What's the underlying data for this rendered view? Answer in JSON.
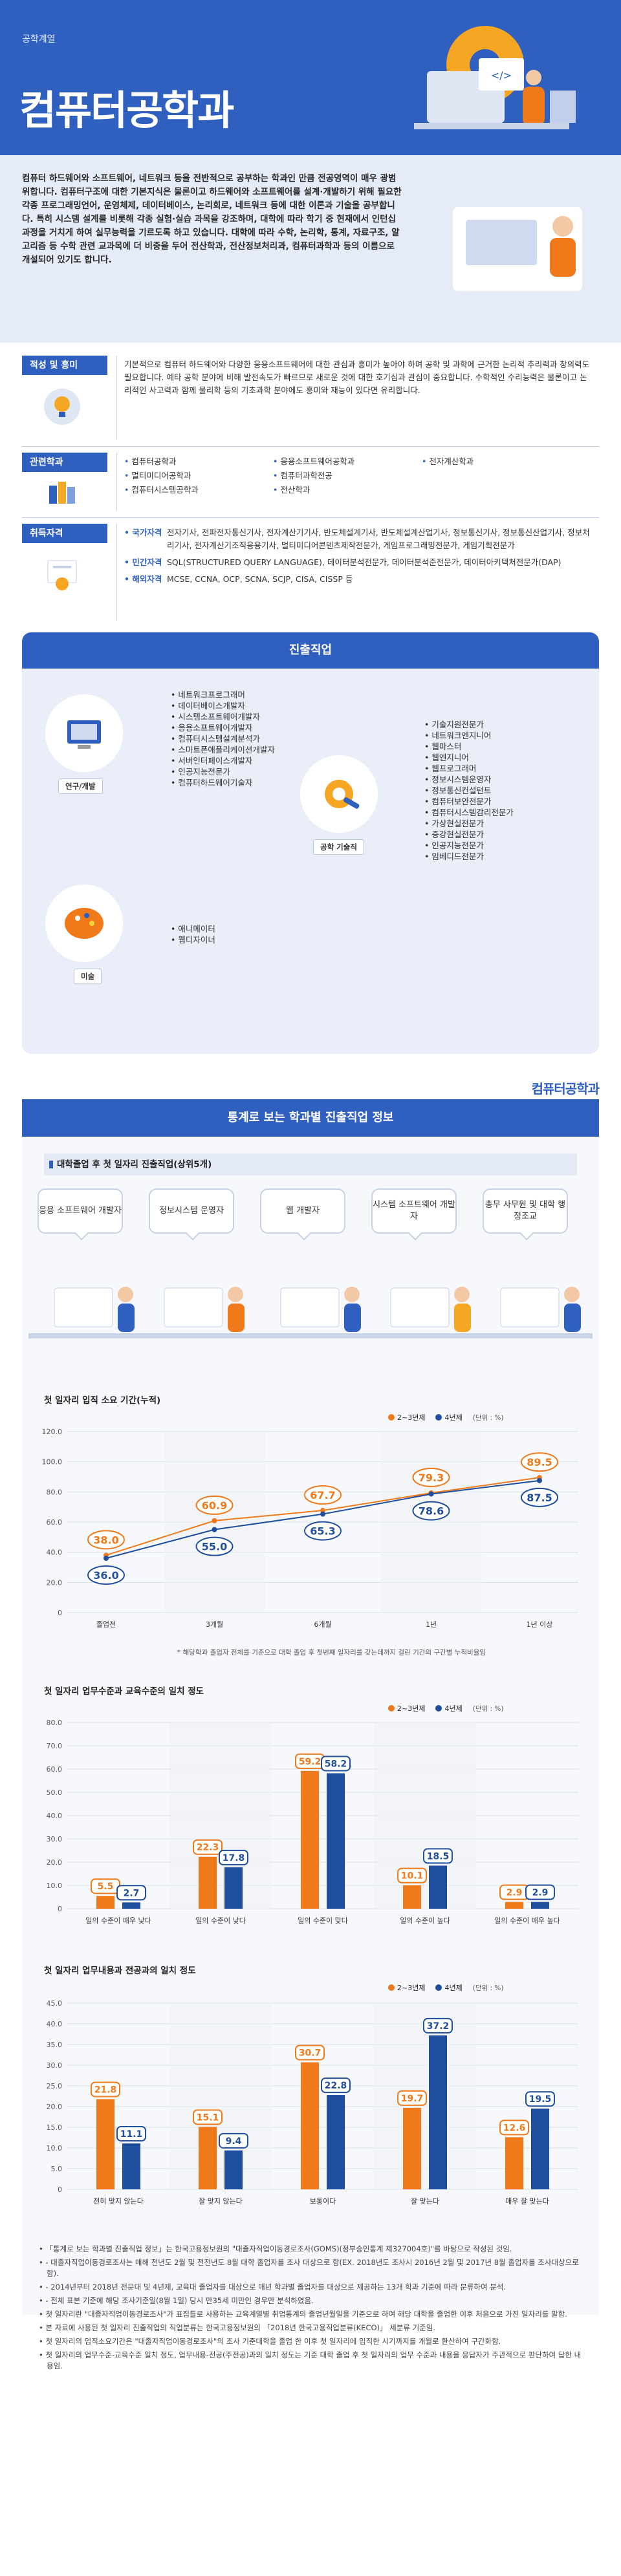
{
  "header": {
    "category": "공학계열",
    "title": "컴퓨터공학과"
  },
  "intro": "컴퓨터 하드웨어와 소프트웨어, 네트워크 등을 전반적으로 공부하는 학과인 만큼 전공영역이 매우 광범위합니다. 컴퓨터구조에 대한 기본지식은 물론이고 하드웨어와 소프트웨어를 설계·개발하기 위해 필요한 각종 프로그래밍언어, 운영체제, 데이터베이스, 논리회로, 네트워크 등에 대한 이론과 기술을 공부합니다. 특히 시스템 설계를 비롯해 각종 실험·실습 과목을 강조하며, 대학에 따라 학기 중 현재에서 인턴십 과정을 거치게 하여 실무능력을 기르도록 하고 있습니다. 대학에 따라 수학, 논리학, 통계, 자료구조, 알고리즘 등 수학 관련 교과목에 더 비중을 두어 전산학과, 전산정보처리과, 컴퓨터과학과 등의 이름으로 개설되어 있기도 합니다.",
  "sections": {
    "aptitude": {
      "label": "적성 및 흥미",
      "text": "기본적으로 컴퓨터 하드웨어와 다양한 응용소프트웨어에 대한 관심과 흥미가 높아야 하며 공학 및 과학에 근거한 논리적 추리력과 창의력도 필요합니다. 예타 공학 분야에 비해 발전속도가 빠르므로 새로운 것에 대한 호기심과 관심이 중요합니다. 수학적인 수리능력은 물론이고 논리적인 사고력과 함께 물리학 등의 기초과학 분야에도 흥미와 재능이 있다면 유리합니다."
    },
    "related": {
      "label": "관련학과",
      "items": [
        "컴퓨터공학과",
        "응용소프트웨어공학과",
        "전자계산학과",
        "멀티미디어공학과",
        "컴퓨터과학전공",
        "",
        "컴퓨터시스템공학과",
        "전산학과",
        ""
      ]
    },
    "certs": {
      "label": "취득자격",
      "national_key": "국가자격",
      "national": "전자기사, 전파전자통신기사, 전자계산기기사, 반도체설계기사, 반도체설계산업기사, 정보통신기사, 정보통신산업기사, 정보처리기사, 전자계산기조직응용기사, 멀티미디어콘텐츠제작전문가, 게임프로그래밍전문가, 게임기획전문가",
      "private_key": "민간자격",
      "private": "SQL(STRUCTURED QUERY LANGUAGE), 데이터분석전문가, 데이터분석준전문가, 데이터아키텍처전문가(DAP)",
      "foreign_key": "해외자격",
      "foreign": "MCSE, CCNA, OCP, SCNA, SCJP, CISA, CISSP 등"
    }
  },
  "jobs": {
    "title": "진출직업",
    "research": {
      "tag": "연구/개발",
      "items": [
        "네트워크프로그래머",
        "데이터베이스개발자",
        "시스템소프트웨어개발자",
        "응용소프트웨어개발자",
        "컴퓨터시스템설계분석가",
        "스마트폰애플리케이션개발자",
        "서버인터페이스개발자",
        "인공지능전문가",
        "컴퓨터하드웨어기술자"
      ]
    },
    "art": {
      "tag": "미술",
      "items": [
        "애니메이터",
        "웹디자이너"
      ]
    },
    "tech": {
      "tag": "공학 기술직",
      "items": [
        "기술지원전문가",
        "네트워크엔지니어",
        "웹마스터",
        "웹엔지니어",
        "웹프로그래머",
        "정보시스템운영자",
        "정보통신컨설턴트",
        "컴퓨터보안전문가",
        "컴퓨터시스템감리전문가",
        "가상현실전문가",
        "증강현실전문가",
        "인공지능전문가",
        "임베디드전문가"
      ]
    }
  },
  "brand": "컴퓨터공학과",
  "stats": {
    "title": "통계로 보는 학과별 진출직업 정보",
    "top5_title": "대학졸업 후 첫 일자리 진출직업(상위5개)",
    "top5": [
      "응용 소프트웨어 개발자",
      "정보시스템 운영자",
      "웹 개발자",
      "시스템 소프트웨어 개발자",
      "총무 사무원 및 대학 행정조교"
    ],
    "legend2": "2~3년제",
    "legend4": "4년제",
    "unit": "(단위 : %)"
  },
  "chart_data": [
    {
      "type": "line",
      "title": "첫 일자리 입직 소요 기간(누적)",
      "categories": [
        "졸업전",
        "3개월",
        "6개월",
        "1년",
        "1년 이상"
      ],
      "series": [
        {
          "name": "2~3년제",
          "values": [
            38.0,
            60.9,
            67.7,
            79.3,
            89.5
          ]
        },
        {
          "name": "4년제",
          "values": [
            36.0,
            55.0,
            65.3,
            78.6,
            87.5
          ]
        }
      ],
      "ylim": [
        0,
        120
      ],
      "yticks": [
        "0",
        "20.0",
        "40.0",
        "60.0",
        "80.0",
        "100.0",
        "120.0"
      ],
      "note": "* 해당학과 졸업자 전체를 기준으로 대학 졸업 후 첫번째 일자리를 갖는데까지 걸린 기간의 구간별 누적비율임"
    },
    {
      "type": "bar",
      "title": "첫 일자리 업무수준과 교육수준의 일치 정도",
      "categories": [
        "일의 수준이 매우 낮다",
        "일의 수준이 낮다",
        "일의 수준이 맞다",
        "일의 수준이 높다",
        "일의 수준이 매우 높다"
      ],
      "series": [
        {
          "name": "2~3년제",
          "values": [
            5.5,
            22.3,
            59.2,
            10.1,
            2.9
          ]
        },
        {
          "name": "4년제",
          "values": [
            2.7,
            17.8,
            58.2,
            18.5,
            2.9
          ]
        }
      ],
      "ylim": [
        0,
        80
      ],
      "yticks": [
        "0",
        "10.0",
        "20.0",
        "30.0",
        "40.0",
        "50.0",
        "60.0",
        "70.0",
        "80.0"
      ]
    },
    {
      "type": "bar",
      "title": "첫 일자리 업무내용과 전공과의 일치 정도",
      "categories": [
        "전혀 맞지 않는다",
        "잘 맞지 않는다",
        "보통이다",
        "잘 맞는다",
        "매우 잘 맞는다"
      ],
      "series": [
        {
          "name": "2~3년제",
          "values": [
            21.8,
            15.1,
            30.7,
            19.7,
            12.6
          ]
        },
        {
          "name": "4년제",
          "values": [
            11.1,
            9.4,
            22.8,
            37.2,
            19.5
          ]
        }
      ],
      "ylim": [
        0,
        45
      ],
      "yticks": [
        "0",
        "5.0",
        "10.0",
        "15.0",
        "20.0",
        "25.0",
        "30.0",
        "35.0",
        "40.0",
        "45.0"
      ]
    }
  ],
  "notes": [
    "「통계로 보는 학과별 진출직업 정보」는 한국고용정보원의 \"대졸자직업이동경로조사(GOMS)(정부승인통계 제327004호)\"를 바탕으로 작성된 것임.",
    "- 대졸자직업이동경로조사는 매해 전년도 2월 및 전전년도 8월 대학 졸업자를 조사 대상으로 함(EX. 2018년도 조사시 2016년 2월 및 2017년 8월 졸업자를 조사대상으로 함).",
    "- 2014년부터 2018년 전문대 및 4년제, 교육대 졸업자를 대상으로 매년 학과별 졸업자를 대상으로 제공하는 13개 학과 기준에 따라 분류하여 분석.",
    "- 전체 표본 기준에 해당 조사기준일(8월 1일) 당시 만35세 미만인 경우만 분석하였음.",
    "첫 일자리란 \"대졸자직업이동경로조사\"가 표집틀로 사용하는 교육계열별 취업통계의 졸업년월일을 기준으로 하여 해당 대학을 졸업한 이후 처음으로 가진 일자리를 말함.",
    "본 자료에 사용된 첫 일자리 진출직업의 직업분류는 한국고용정보원의 「2018년 한국고용직업분류(KECO)」 세분류 기준임.",
    "첫 일자리의 입직소요기간은 \"대졸자직업이동경로조사\"의 조사 기준대학을 졸업 한 이후 첫 일자리에 입직한 시기까지를 개월로 환산하여 구간화함.",
    "첫 일자리의 업무수준-교육수준 일치 정도, 업무내용-전공(주전공)과의 일치 정도는 기준 대학 졸업 후 첫 일자리의 업무 수준과 내용을 응답자가 주관적으로 판단하여 답한 내용임."
  ],
  "colors": {
    "brand": "#2f5fbf",
    "orange": "#f07a1a",
    "blue": "#1f4e9c"
  }
}
